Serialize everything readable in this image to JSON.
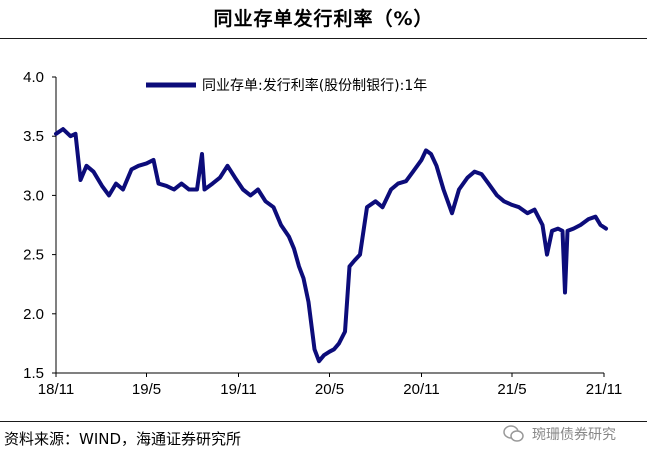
{
  "title": "同业存单发行利率（%）",
  "source": "资料来源：WIND，海通证券研究所",
  "watermark": "琬珊债券研究",
  "chart_data": {
    "type": "line",
    "title": "同业存单发行利率（%）",
    "xlabel": "",
    "ylabel": "",
    "ylim": [
      1.5,
      4.0
    ],
    "yticks": [
      "4.0",
      "3.5",
      "3.0",
      "2.5",
      "2.0",
      "1.5"
    ],
    "x_range": [
      "2018-11",
      "2021-11"
    ],
    "xticks": [
      "18/11",
      "19/5",
      "19/11",
      "20/5",
      "20/11",
      "21/5",
      "21/11"
    ],
    "grid": false,
    "legend_position": "top-center",
    "color": "#0c0c7a",
    "series": [
      {
        "name": "同业存单:发行利率(股份制银行):1年",
        "points": [
          [
            "2018-11-01",
            3.52
          ],
          [
            "2018-11-15",
            3.56
          ],
          [
            "2018-11-30",
            3.5
          ],
          [
            "2018-12-10",
            3.52
          ],
          [
            "2018-12-20",
            3.13
          ],
          [
            "2019-01-01",
            3.25
          ],
          [
            "2019-01-15",
            3.2
          ],
          [
            "2019-02-01",
            3.08
          ],
          [
            "2019-02-15",
            3.0
          ],
          [
            "2019-03-01",
            3.1
          ],
          [
            "2019-03-15",
            3.05
          ],
          [
            "2019-04-01",
            3.22
          ],
          [
            "2019-04-15",
            3.25
          ],
          [
            "2019-05-01",
            3.27
          ],
          [
            "2019-05-15",
            3.3
          ],
          [
            "2019-05-25",
            3.1
          ],
          [
            "2019-06-10",
            3.08
          ],
          [
            "2019-06-25",
            3.05
          ],
          [
            "2019-07-10",
            3.1
          ],
          [
            "2019-07-25",
            3.05
          ],
          [
            "2019-08-10",
            3.05
          ],
          [
            "2019-08-20",
            3.35
          ],
          [
            "2019-08-25",
            3.05
          ],
          [
            "2019-09-10",
            3.1
          ],
          [
            "2019-09-25",
            3.15
          ],
          [
            "2019-10-10",
            3.25
          ],
          [
            "2019-10-25",
            3.15
          ],
          [
            "2019-11-10",
            3.05
          ],
          [
            "2019-11-25",
            3.0
          ],
          [
            "2019-12-10",
            3.05
          ],
          [
            "2019-12-25",
            2.95
          ],
          [
            "2020-01-10",
            2.9
          ],
          [
            "2020-01-25",
            2.75
          ],
          [
            "2020-02-10",
            2.65
          ],
          [
            "2020-02-20",
            2.55
          ],
          [
            "2020-03-01",
            2.4
          ],
          [
            "2020-03-10",
            2.3
          ],
          [
            "2020-03-20",
            2.1
          ],
          [
            "2020-04-01",
            1.7
          ],
          [
            "2020-04-10",
            1.6
          ],
          [
            "2020-04-20",
            1.65
          ],
          [
            "2020-05-01",
            1.68
          ],
          [
            "2020-05-10",
            1.7
          ],
          [
            "2020-05-20",
            1.75
          ],
          [
            "2020-06-01",
            1.85
          ],
          [
            "2020-06-10",
            2.4
          ],
          [
            "2020-06-20",
            2.45
          ],
          [
            "2020-07-01",
            2.5
          ],
          [
            "2020-07-15",
            2.9
          ],
          [
            "2020-08-01",
            2.95
          ],
          [
            "2020-08-15",
            2.9
          ],
          [
            "2020-09-01",
            3.05
          ],
          [
            "2020-09-15",
            3.1
          ],
          [
            "2020-10-01",
            3.12
          ],
          [
            "2020-10-15",
            3.2
          ],
          [
            "2020-11-01",
            3.3
          ],
          [
            "2020-11-10",
            3.38
          ],
          [
            "2020-11-20",
            3.35
          ],
          [
            "2020-12-01",
            3.25
          ],
          [
            "2020-12-15",
            3.05
          ],
          [
            "2021-01-01",
            2.85
          ],
          [
            "2021-01-15",
            3.05
          ],
          [
            "2021-02-01",
            3.15
          ],
          [
            "2021-02-15",
            3.2
          ],
          [
            "2021-03-01",
            3.18
          ],
          [
            "2021-03-15",
            3.1
          ],
          [
            "2021-04-01",
            3.0
          ],
          [
            "2021-04-15",
            2.95
          ],
          [
            "2021-05-01",
            2.92
          ],
          [
            "2021-05-15",
            2.9
          ],
          [
            "2021-06-01",
            2.85
          ],
          [
            "2021-06-15",
            2.88
          ],
          [
            "2021-07-01",
            2.75
          ],
          [
            "2021-07-10",
            2.5
          ],
          [
            "2021-07-20",
            2.7
          ],
          [
            "2021-08-01",
            2.72
          ],
          [
            "2021-08-10",
            2.7
          ],
          [
            "2021-08-15",
            2.18
          ],
          [
            "2021-08-20",
            2.7
          ],
          [
            "2021-09-01",
            2.72
          ],
          [
            "2021-09-15",
            2.75
          ],
          [
            "2021-10-01",
            2.8
          ],
          [
            "2021-10-15",
            2.82
          ],
          [
            "2021-10-25",
            2.75
          ],
          [
            "2021-11-05",
            2.72
          ]
        ]
      }
    ]
  }
}
